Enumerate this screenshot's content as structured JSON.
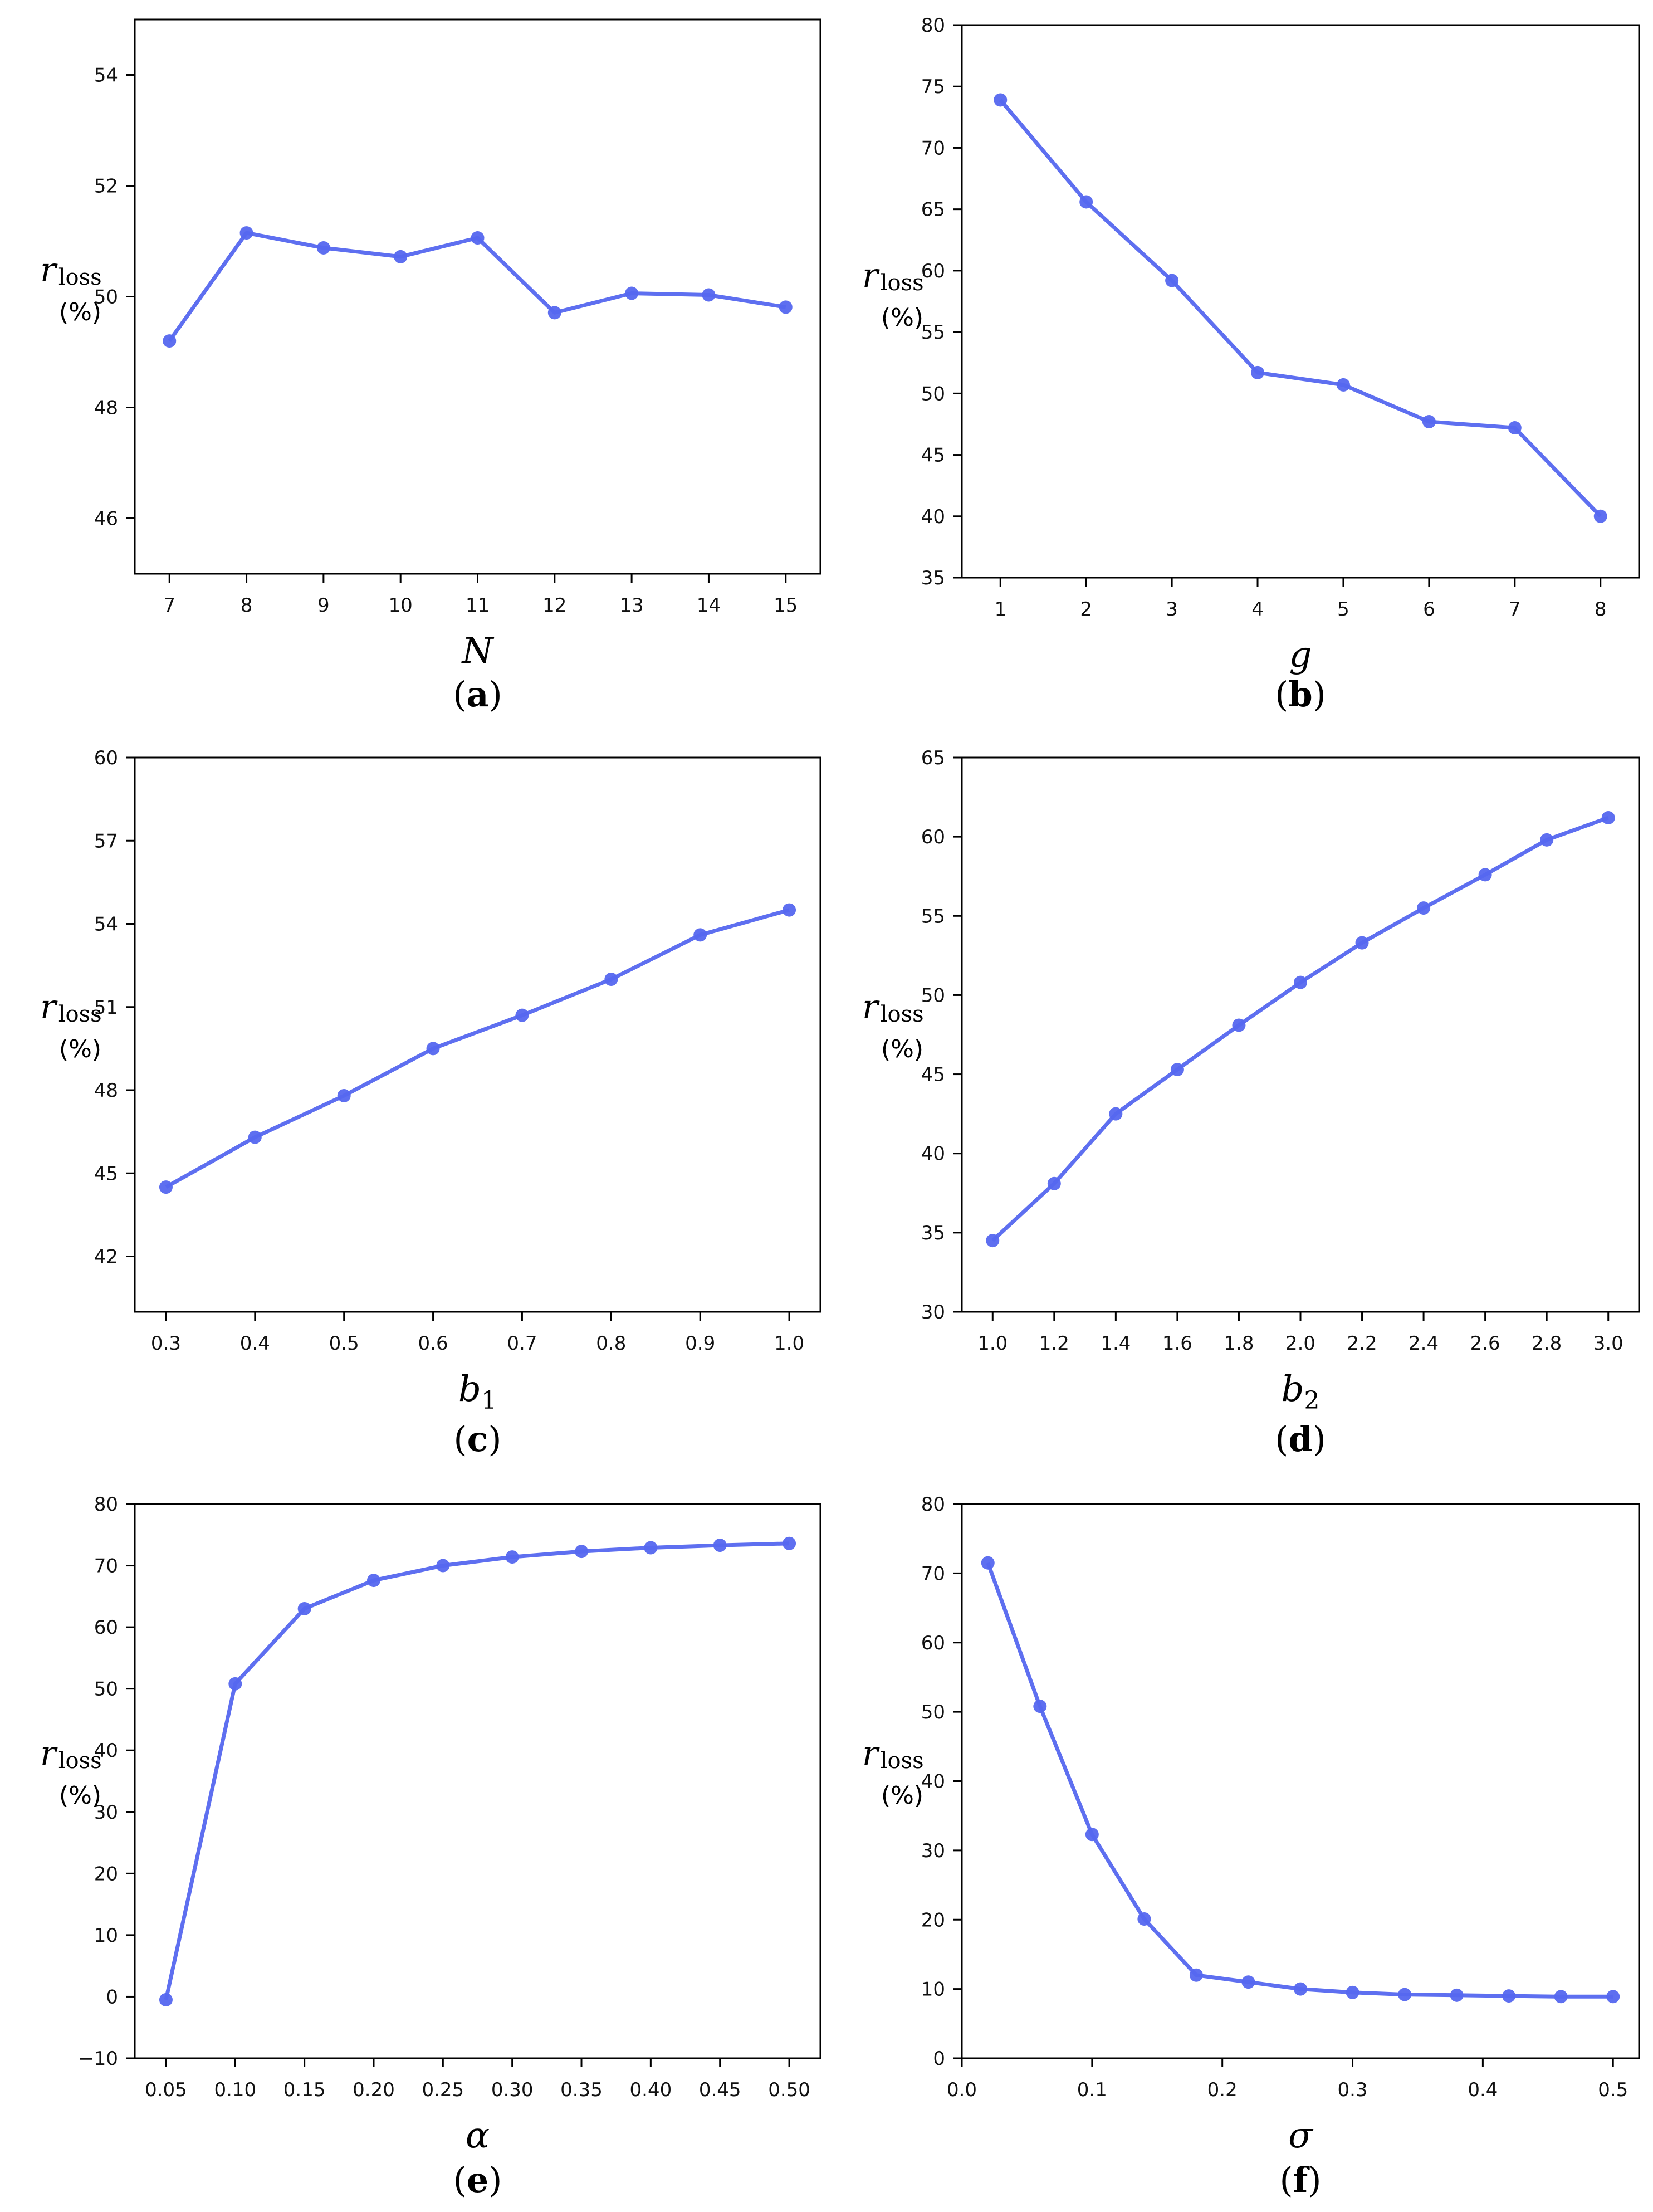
{
  "line_color": "#5567ef",
  "chart_data": [
    {
      "id": "a",
      "type": "line",
      "x": [
        7,
        8,
        9,
        10,
        11,
        12,
        13,
        14,
        15
      ],
      "values": [
        49.2,
        51.15,
        50.88,
        50.72,
        51.06,
        49.71,
        50.06,
        50.03,
        49.81
      ],
      "xlabel": "N",
      "xlabel_sub": "",
      "ylabel": "r",
      "ylabel_sub": "loss",
      "ylabel_unit": "(%)",
      "xlim": [
        6.55,
        15.45
      ],
      "ylim": [
        45,
        55
      ],
      "xticks": [
        7,
        8,
        9,
        10,
        11,
        12,
        13,
        14,
        15
      ],
      "xtick_labels": [
        "7",
        "8",
        "9",
        "10",
        "11",
        "12",
        "13",
        "14",
        "15"
      ],
      "yticks": [
        46,
        48,
        50,
        52,
        54
      ],
      "ytick_labels": [
        "46",
        "48",
        "50",
        "52",
        "54"
      ],
      "caption_open": "(",
      "caption_letter": "a",
      "caption_close": ")"
    },
    {
      "id": "b",
      "type": "line",
      "x": [
        1,
        2,
        3,
        4,
        5,
        6,
        7,
        8
      ],
      "values": [
        73.9,
        65.6,
        59.2,
        51.7,
        50.7,
        47.7,
        47.2,
        40.0
      ],
      "xlabel": "g",
      "xlabel_sub": "",
      "ylabel": "r",
      "ylabel_sub": "loss",
      "ylabel_unit": "(%)",
      "xlim": [
        0.55,
        8.45
      ],
      "ylim": [
        35,
        80
      ],
      "xticks": [
        1,
        2,
        3,
        4,
        5,
        6,
        7,
        8
      ],
      "xtick_labels": [
        "1",
        "2",
        "3",
        "4",
        "5",
        "6",
        "7",
        "8"
      ],
      "yticks": [
        35,
        40,
        45,
        50,
        55,
        60,
        65,
        70,
        75,
        80
      ],
      "ytick_labels": [
        "35",
        "40",
        "45",
        "50",
        "55",
        "60",
        "65",
        "70",
        "75",
        "80"
      ],
      "caption_open": "(",
      "caption_letter": "b",
      "caption_close": ")"
    },
    {
      "id": "c",
      "type": "line",
      "x": [
        0.3,
        0.4,
        0.5,
        0.6,
        0.7,
        0.8,
        0.9,
        1.0
      ],
      "values": [
        44.5,
        46.3,
        47.8,
        49.5,
        50.7,
        52.0,
        53.6,
        54.5
      ],
      "xlabel": "b",
      "xlabel_sub": "1",
      "ylabel": "r",
      "ylabel_sub": "loss",
      "ylabel_unit": "(%)",
      "xlim": [
        0.265,
        1.035
      ],
      "ylim": [
        40,
        60
      ],
      "xticks": [
        0.3,
        0.4,
        0.5,
        0.6,
        0.7,
        0.8,
        0.9,
        1.0
      ],
      "xtick_labels": [
        "0.3",
        "0.4",
        "0.5",
        "0.6",
        "0.7",
        "0.8",
        "0.9",
        "1.0"
      ],
      "yticks": [
        42,
        45,
        48,
        51,
        54,
        57,
        60
      ],
      "ytick_labels": [
        "42",
        "45",
        "48",
        "51",
        "54",
        "57",
        "60"
      ],
      "caption_open": "(",
      "caption_letter": "c",
      "caption_close": ")"
    },
    {
      "id": "d",
      "type": "line",
      "x": [
        1.0,
        1.2,
        1.4,
        1.6,
        1.8,
        2.0,
        2.2,
        2.4,
        2.6,
        2.8,
        3.0
      ],
      "values": [
        34.5,
        38.1,
        42.5,
        45.3,
        48.1,
        50.8,
        53.3,
        55.5,
        57.6,
        59.8,
        61.2
      ],
      "xlabel": "b",
      "xlabel_sub": "2",
      "ylabel": "r",
      "ylabel_sub": "loss",
      "ylabel_unit": "(%)",
      "xlim": [
        0.9,
        3.1
      ],
      "ylim": [
        30,
        65
      ],
      "xticks": [
        1.0,
        1.2,
        1.4,
        1.6,
        1.8,
        2.0,
        2.2,
        2.4,
        2.6,
        2.8,
        3.0
      ],
      "xtick_labels": [
        "1.0",
        "1.2",
        "1.4",
        "1.6",
        "1.8",
        "2.0",
        "2.2",
        "2.4",
        "2.6",
        "2.8",
        "3.0"
      ],
      "yticks": [
        30,
        35,
        40,
        45,
        50,
        55,
        60,
        65
      ],
      "ytick_labels": [
        "30",
        "35",
        "40",
        "45",
        "50",
        "55",
        "60",
        "65"
      ],
      "caption_open": "(",
      "caption_letter": "d",
      "caption_close": ")"
    },
    {
      "id": "e",
      "type": "line",
      "x": [
        0.05,
        0.1,
        0.15,
        0.2,
        0.25,
        0.3,
        0.35,
        0.4,
        0.45,
        0.5
      ],
      "values": [
        -0.5,
        50.8,
        63.0,
        67.6,
        70.0,
        71.4,
        72.3,
        72.9,
        73.3,
        73.6
      ],
      "xlabel": "α",
      "xlabel_sub": "",
      "ylabel": "r",
      "ylabel_sub": "loss",
      "ylabel_unit": "(%)",
      "xlim": [
        0.0275,
        0.5225
      ],
      "ylim": [
        -10,
        80
      ],
      "xticks": [
        0.05,
        0.1,
        0.15,
        0.2,
        0.25,
        0.3,
        0.35,
        0.4,
        0.45,
        0.5
      ],
      "xtick_labels": [
        "0.05",
        "0.10",
        "0.15",
        "0.20",
        "0.25",
        "0.30",
        "0.35",
        "0.40",
        "0.45",
        "0.50"
      ],
      "yticks": [
        -10,
        0,
        10,
        20,
        30,
        40,
        50,
        60,
        70,
        80
      ],
      "ytick_labels": [
        "−10",
        "0",
        "10",
        "20",
        "30",
        "40",
        "50",
        "60",
        "70",
        "80"
      ],
      "caption_open": "(",
      "caption_letter": "e",
      "caption_close": ")"
    },
    {
      "id": "f",
      "type": "line",
      "x": [
        0.02,
        0.06,
        0.1,
        0.14,
        0.18,
        0.22,
        0.26,
        0.3,
        0.34,
        0.38,
        0.42,
        0.46,
        0.5
      ],
      "values": [
        71.5,
        50.8,
        32.3,
        20.1,
        12.0,
        11.0,
        10.0,
        9.5,
        9.2,
        9.1,
        9.0,
        8.9,
        8.9
      ],
      "xlabel": "σ",
      "xlabel_sub": "",
      "ylabel": "r",
      "ylabel_sub": "loss",
      "ylabel_unit": "(%)",
      "xlim": [
        0.0,
        0.52
      ],
      "ylim": [
        0,
        80
      ],
      "xticks": [
        0.0,
        0.1,
        0.2,
        0.3,
        0.4,
        0.5
      ],
      "xtick_labels": [
        "0.0",
        "0.1",
        "0.2",
        "0.3",
        "0.4",
        "0.5"
      ],
      "yticks": [
        0,
        10,
        20,
        30,
        40,
        50,
        60,
        70,
        80
      ],
      "ytick_labels": [
        "0",
        "10",
        "20",
        "30",
        "40",
        "50",
        "60",
        "70",
        "80"
      ],
      "caption_open": "(",
      "caption_letter": "f",
      "caption_close": ")"
    }
  ]
}
